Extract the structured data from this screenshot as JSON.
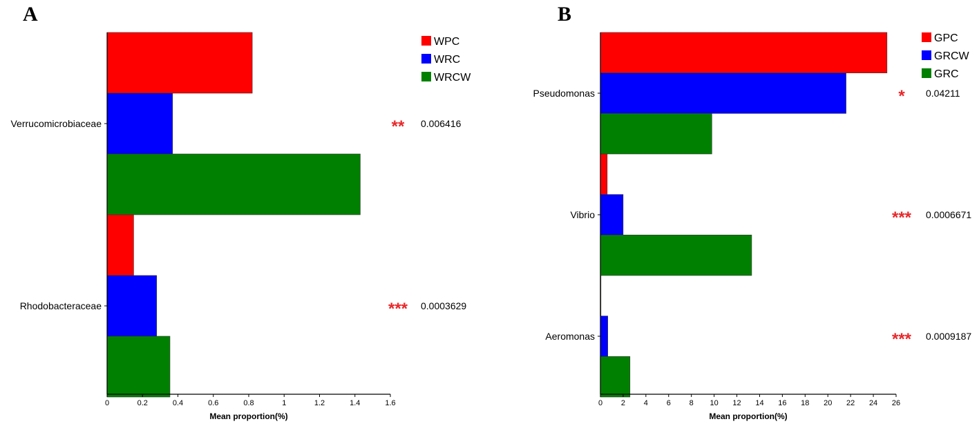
{
  "chart_data": [
    {
      "type": "bar",
      "orientation": "horizontal",
      "panel_label": "A",
      "xlabel": "Mean proportion(%)",
      "xlim": [
        0,
        1.6
      ],
      "xticks": [
        "0",
        "0.2",
        "0.4",
        "0.6",
        "0.8",
        "1",
        "1.2",
        "1.4",
        "1.6"
      ],
      "categories": [
        "Verrucomicrobiaceae",
        "Rhodobacteraceae"
      ],
      "series": [
        {
          "name": "WPC",
          "color": "#ff0000",
          "values": [
            0.82,
            0.15
          ]
        },
        {
          "name": "WRC",
          "color": "#0000ff",
          "values": [
            0.37,
            0.28
          ]
        },
        {
          "name": "WRCW",
          "color": "#008000",
          "values": [
            1.43,
            0.355
          ]
        }
      ],
      "significance": [
        {
          "stars": "**",
          "p_value": "0.006416"
        },
        {
          "stars": "***",
          "p_value": "0.0003629"
        }
      ],
      "legend_position": "top-right"
    },
    {
      "type": "bar",
      "orientation": "horizontal",
      "panel_label": "B",
      "xlabel": "Mean proportion(%)",
      "xlim": [
        0,
        26
      ],
      "xticks": [
        "0",
        "2",
        "4",
        "6",
        "8",
        "10",
        "12",
        "14",
        "16",
        "18",
        "20",
        "22",
        "24",
        "26"
      ],
      "categories": [
        "Pseudomonas",
        "Vibrio",
        "Aeromonas"
      ],
      "series": [
        {
          "name": "GPC",
          "color": "#ff0000",
          "values": [
            25.2,
            0.6,
            0.05
          ]
        },
        {
          "name": "GRCW",
          "color": "#0000ff",
          "values": [
            21.6,
            2.0,
            0.65
          ]
        },
        {
          "name": "GRC",
          "color": "#008000",
          "values": [
            9.8,
            13.3,
            2.6
          ]
        }
      ],
      "significance": [
        {
          "stars": "*",
          "p_value": "0.04211"
        },
        {
          "stars": "***",
          "p_value": "0.0006671"
        },
        {
          "stars": "***",
          "p_value": "0.0009187"
        }
      ],
      "legend_position": "top-right"
    }
  ],
  "colors": {
    "significance": "#e8282b",
    "axis": "#000000"
  }
}
